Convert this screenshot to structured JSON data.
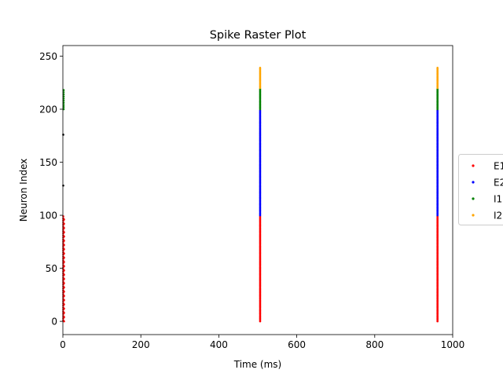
{
  "chart_data": {
    "type": "scatter",
    "title": "Spike Raster Plot",
    "xlabel": "Time (ms)",
    "ylabel": "Neuron Index",
    "xlim": [
      0,
      1000
    ],
    "ylim": [
      -12.5,
      260
    ],
    "x_ticks": [
      0,
      200,
      400,
      600,
      800,
      1000
    ],
    "y_ticks": [
      0,
      50,
      100,
      150,
      200,
      250
    ],
    "grid": false,
    "legend_position": "right (outside plot)",
    "series": [
      {
        "name": "E1",
        "color": "#ff0000",
        "neuron_range": [
          0,
          99
        ],
        "bursts": [
          {
            "t": 1,
            "neurons": [
              1,
              3,
              5,
              7,
              9,
              11,
              13,
              15,
              17,
              19,
              21,
              23,
              25,
              27,
              29,
              31,
              33,
              35,
              37,
              39,
              41,
              43,
              45,
              47,
              49,
              51,
              53,
              55,
              57,
              59,
              61,
              63,
              65,
              67,
              69,
              71,
              73,
              75,
              77,
              79,
              81,
              83,
              85,
              87,
              89,
              91,
              93,
              95,
              97,
              99
            ]
          },
          {
            "t": 3,
            "neurons": [
              0,
              4,
              8,
              12,
              16,
              20,
              24,
              28,
              32,
              36,
              40,
              44,
              48,
              52,
              56,
              60,
              64,
              68,
              72,
              76,
              80,
              84,
              88,
              92,
              96
            ]
          },
          {
            "t": 506,
            "neurons": "all"
          },
          {
            "t": 961,
            "neurons": "all"
          }
        ]
      },
      {
        "name": "E2",
        "color": "#0000ff",
        "neuron_range": [
          100,
          199
        ],
        "bursts": [
          {
            "t": 506,
            "neurons": "all"
          },
          {
            "t": 961,
            "neurons": "all"
          }
        ]
      },
      {
        "name": "I1",
        "color": "#008000",
        "neuron_range": [
          200,
          219
        ],
        "bursts": [
          {
            "t": 2,
            "neurons": [
              200,
              202,
              204,
              206,
              208,
              210,
              212,
              214,
              216,
              218
            ]
          },
          {
            "t": 506,
            "neurons": "all"
          },
          {
            "t": 961,
            "neurons": "all"
          }
        ]
      },
      {
        "name": "I2",
        "color": "#ffa500",
        "neuron_range": [
          220,
          239
        ],
        "bursts": [
          {
            "t": 506,
            "neurons": "all"
          },
          {
            "t": 961,
            "neurons": "all"
          }
        ]
      },
      {
        "name": "",
        "color": "#000000",
        "neuron_range": [
          128,
          176
        ],
        "bursts": [
          {
            "t": 1,
            "neurons": [
              128,
              176
            ]
          }
        ]
      }
    ]
  }
}
